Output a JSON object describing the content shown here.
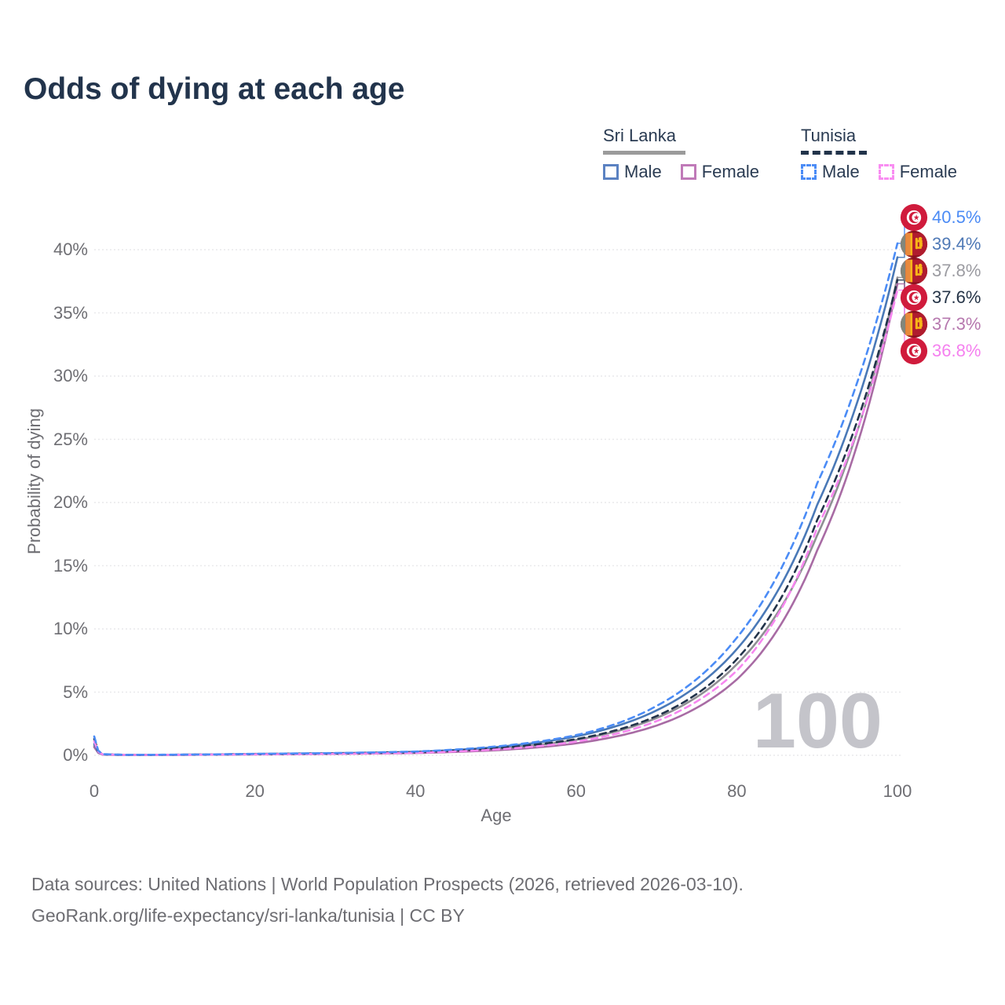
{
  "header": {
    "title": "Odds of dying at each age"
  },
  "legend": {
    "groups": [
      {
        "label": "Sri Lanka",
        "line_style": "solid",
        "underline_color": "#9b9b9b",
        "items": [
          {
            "label": "Male",
            "color": "#5b82c2"
          },
          {
            "label": "Female",
            "color": "#c07ab8"
          }
        ]
      },
      {
        "label": "Tunisia",
        "line_style": "dashed",
        "underline_color": "#22334a",
        "items": [
          {
            "label": "Male",
            "color": "#4b8cf6"
          },
          {
            "label": "Female",
            "color": "#f98df2"
          }
        ]
      }
    ]
  },
  "chart_data": {
    "type": "line",
    "title": "Odds of dying at each age",
    "xlabel": "Age",
    "ylabel": "Probability of dying",
    "x_ticks": [
      0,
      20,
      40,
      60,
      80,
      100
    ],
    "y_ticks": [
      "0%",
      "5%",
      "10%",
      "15%",
      "20%",
      "25%",
      "30%",
      "35%",
      "40%"
    ],
    "xlim": [
      0,
      100
    ],
    "ylim_pct": [
      0,
      42
    ],
    "grid": true,
    "legend_position": "top-right",
    "watermark": "100",
    "ages": [
      0,
      1,
      4,
      10,
      20,
      30,
      40,
      50,
      60,
      70,
      80,
      90,
      100
    ],
    "series": [
      {
        "name": "Tunisia Male",
        "flag": "tunisia",
        "dash": true,
        "color": "#4b8cf6",
        "label_color": "#4b8bf5",
        "end_label": "40.5%",
        "end_value_pct": 40.5,
        "values_pct": [
          1.5,
          0.1,
          0.04,
          0.05,
          0.12,
          0.18,
          0.3,
          0.7,
          1.6,
          3.9,
          9.3,
          21.5,
          40.5
        ]
      },
      {
        "name": "Sri Lanka Male",
        "flag": "sri-lanka",
        "dash": false,
        "color": "#4a79b7",
        "label_color": "#4f79b6",
        "end_label": "39.4%",
        "end_value_pct": 39.4,
        "values_pct": [
          0.9,
          0.08,
          0.035,
          0.045,
          0.11,
          0.17,
          0.28,
          0.65,
          1.5,
          3.55,
          8.4,
          19.8,
          39.4
        ]
      },
      {
        "name": "Sri Lanka Both",
        "flag": "sri-lanka",
        "dash": false,
        "color": "#8f8f94",
        "label_color": "#9b9ba1",
        "end_label": "37.8%",
        "end_value_pct": 37.8,
        "values_pct": [
          0.75,
          0.07,
          0.03,
          0.04,
          0.09,
          0.14,
          0.23,
          0.52,
          1.22,
          2.95,
          7.2,
          17.4,
          37.8
        ]
      },
      {
        "name": "Tunisia Both",
        "flag": "tunisia",
        "dash": true,
        "color": "#22334a",
        "label_color": "#253447",
        "end_label": "37.6%",
        "end_value_pct": 37.6,
        "values_pct": [
          1.3,
          0.09,
          0.035,
          0.045,
          0.1,
          0.15,
          0.25,
          0.56,
          1.28,
          3.1,
          7.6,
          18.6,
          37.6
        ]
      },
      {
        "name": "Sri Lanka Female",
        "flag": "sri-lanka",
        "dash": false,
        "color": "#a86ba4",
        "label_color": "#b678ae",
        "end_label": "37.3%",
        "end_value_pct": 37.3,
        "values_pct": [
          0.65,
          0.06,
          0.025,
          0.035,
          0.07,
          0.11,
          0.18,
          0.4,
          0.95,
          2.35,
          6.0,
          16.2,
          37.3
        ]
      },
      {
        "name": "Tunisia Female",
        "flag": "tunisia",
        "dash": true,
        "color": "#f787f0",
        "label_color": "#f580ef",
        "end_label": "36.8%",
        "end_value_pct": 36.8,
        "values_pct": [
          1.1,
          0.08,
          0.03,
          0.04,
          0.08,
          0.12,
          0.2,
          0.46,
          1.08,
          2.7,
          6.7,
          18.0,
          36.8
        ]
      }
    ]
  },
  "footer": {
    "line1": "Data sources: United Nations | World Population Prospects (2026, retrieved 2026-03-10).",
    "line2": "GeoRank.org/life-expectancy/sri-lanka/tunisia | CC BY"
  }
}
